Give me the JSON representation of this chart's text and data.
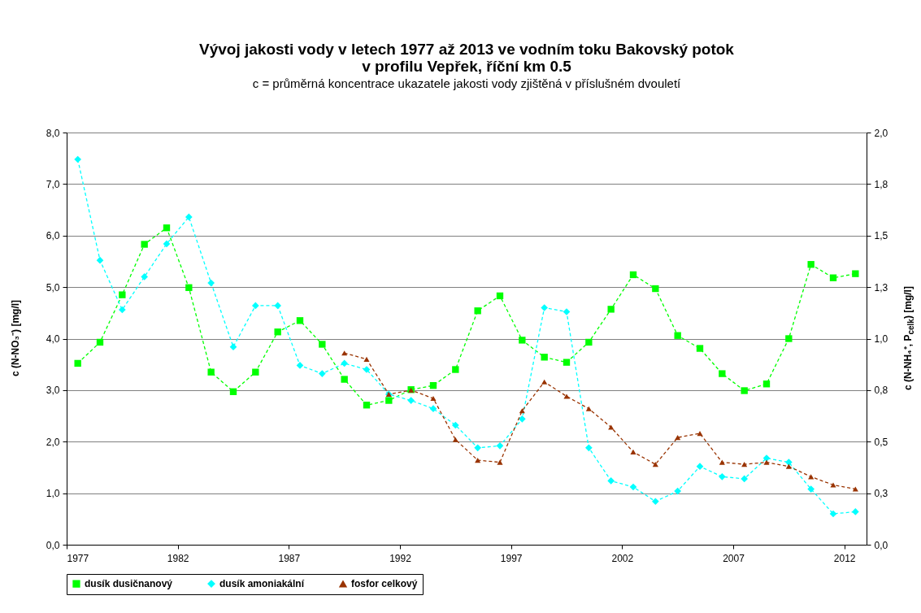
{
  "chart_data": {
    "type": "line",
    "title": "Vývoj jakosti vody v letech 1977 až 2013 ve vodním toku Bakovský potok\nv profilu Vepřek, říční km 0.5",
    "subtitle": "c = průměrná koncentrace ukazatele jakosti vody zjištěná v příslušném dvouletí",
    "ylabel": "c (N-NO₃⁻) [mg/l]",
    "y2label": "c (N-NH₄⁺, P$_{celk}$) [mg/l]",
    "x": [
      1977.5,
      1978.5,
      1979.5,
      1980.5,
      1981.5,
      1982.5,
      1983.5,
      1984.5,
      1985.5,
      1986.5,
      1987.5,
      1988.5,
      1989.5,
      1990.5,
      1991.5,
      1992.5,
      1993.5,
      1994.5,
      1995.5,
      1996.5,
      1997.5,
      1998.5,
      1999.5,
      2000.5,
      2001.5,
      2002.5,
      2003.5,
      2004.5,
      2005.5,
      2006.5,
      2007.5,
      2008.5,
      2009.5,
      2010.5,
      2011.5,
      2012.5
    ],
    "series": [
      {
        "name": "dusík dusičnanový",
        "color": "#00ff00",
        "marker": "square",
        "values": [
          3.52,
          3.93,
          4.85,
          5.83,
          6.15,
          4.99,
          3.35,
          2.97,
          3.35,
          4.13,
          4.35,
          3.89,
          3.21,
          2.71,
          2.8,
          3.01,
          3.09,
          3.4,
          4.54,
          4.83,
          3.97,
          3.64,
          3.54,
          3.93,
          4.57,
          5.24,
          4.97,
          4.06,
          3.81,
          3.32,
          2.99,
          3.12,
          4.0,
          5.44,
          5.18,
          5.26
        ]
      },
      {
        "name": "dusík amoniakální",
        "color": "#00ffff",
        "marker": "diamond",
        "axis": "y2",
        "values": [
          1.87,
          1.38,
          1.14,
          1.3,
          1.46,
          1.59,
          1.27,
          0.96,
          1.16,
          1.16,
          0.87,
          0.83,
          0.88,
          0.85,
          0.73,
          0.7,
          0.66,
          0.58,
          0.47,
          0.48,
          0.61,
          1.15,
          1.13,
          0.47,
          0.31,
          0.28,
          0.21,
          0.26,
          0.38,
          0.33,
          0.32,
          0.42,
          0.4,
          0.27,
          0.15,
          0.16
        ]
      },
      {
        "name": "fosfor celkový",
        "color": "#993300",
        "marker": "triangle",
        "axis": "y2",
        "x": [
          1989.5,
          1990.5,
          1991.5,
          1992.5,
          1993.5,
          1994.5,
          1995.5,
          1996.5,
          1997.5,
          1998.5,
          1999.5,
          2000.5,
          2001.5,
          2002.5,
          2003.5,
          2004.5,
          2005.5,
          2006.5,
          2007.5,
          2008.5,
          2009.5,
          2010.5,
          2011.5,
          2012.5
        ],
        "values": [
          0.93,
          0.9,
          0.73,
          0.75,
          0.71,
          0.51,
          0.41,
          0.4,
          0.65,
          0.79,
          0.72,
          0.66,
          0.57,
          0.45,
          0.39,
          0.52,
          0.54,
          0.4,
          0.39,
          0.4,
          0.38,
          0.33,
          0.29,
          0.27
        ]
      }
    ],
    "xlim": [
      1977,
      2013
    ],
    "xticks": [
      1977,
      1982,
      1987,
      1992,
      1997,
      2002,
      2007,
      2012
    ],
    "ylim": [
      0,
      8
    ],
    "yticks": [
      {
        "value": 0,
        "label": "0,0"
      },
      {
        "value": 1,
        "label": "1,0"
      },
      {
        "value": 2,
        "label": "2,0"
      },
      {
        "value": 3,
        "label": "3,0"
      },
      {
        "value": 4,
        "label": "4,0"
      },
      {
        "value": 5,
        "label": "5,0"
      },
      {
        "value": 6,
        "label": "6,0"
      },
      {
        "value": 7,
        "label": "7,0"
      },
      {
        "value": 8,
        "label": "8,0"
      }
    ],
    "y2lim": [
      0,
      2
    ],
    "y2ticks": [
      {
        "value": 0,
        "label": "0,0"
      },
      {
        "value": 0.25,
        "label": "0,3"
      },
      {
        "value": 0.5,
        "label": "0,5"
      },
      {
        "value": 0.75,
        "label": "0,8"
      },
      {
        "value": 1,
        "label": "1,0"
      },
      {
        "value": 1.25,
        "label": "1,3"
      },
      {
        "value": 1.5,
        "label": "1,5"
      },
      {
        "value": 1.75,
        "label": "1,8"
      },
      {
        "value": 2,
        "label": "2,0"
      }
    ],
    "grid": "y",
    "legend": "bottom",
    "line_style": "dashed"
  }
}
